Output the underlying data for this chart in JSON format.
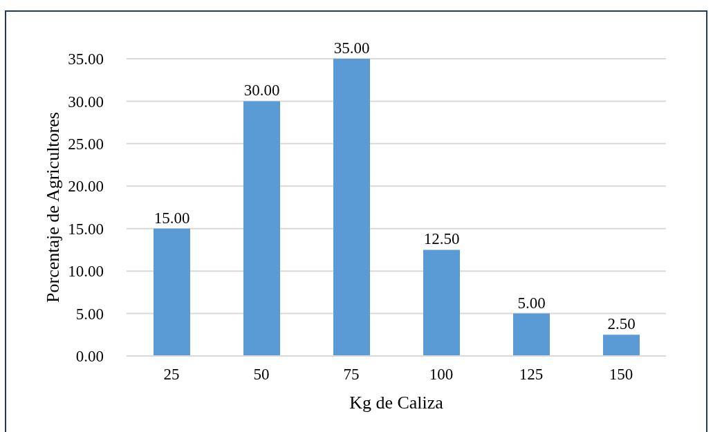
{
  "chart_data": {
    "type": "bar",
    "xlabel": "Kg de Caliza",
    "ylabel": "Porcentaje de Agricultores",
    "categories": [
      "25",
      "50",
      "75",
      "100",
      "125",
      "150"
    ],
    "values": [
      15,
      30,
      35,
      12.5,
      5,
      2.5
    ],
    "value_labels": [
      "15.00",
      "30.00",
      "35.00",
      "12.50",
      "5.00",
      "2.50"
    ],
    "color": "#5b9bd5",
    "ylim": [
      0,
      35
    ],
    "yticks": [
      {
        "value": 0,
        "label": "0.00"
      },
      {
        "value": 5,
        "label": "5.00"
      },
      {
        "value": 10,
        "label": "10.00"
      },
      {
        "value": 15,
        "label": "15.00"
      },
      {
        "value": 20,
        "label": "20.00"
      },
      {
        "value": 25,
        "label": "25.00"
      },
      {
        "value": 30,
        "label": "30.00"
      },
      {
        "value": 35,
        "label": "35.00"
      }
    ],
    "grid": "y"
  }
}
